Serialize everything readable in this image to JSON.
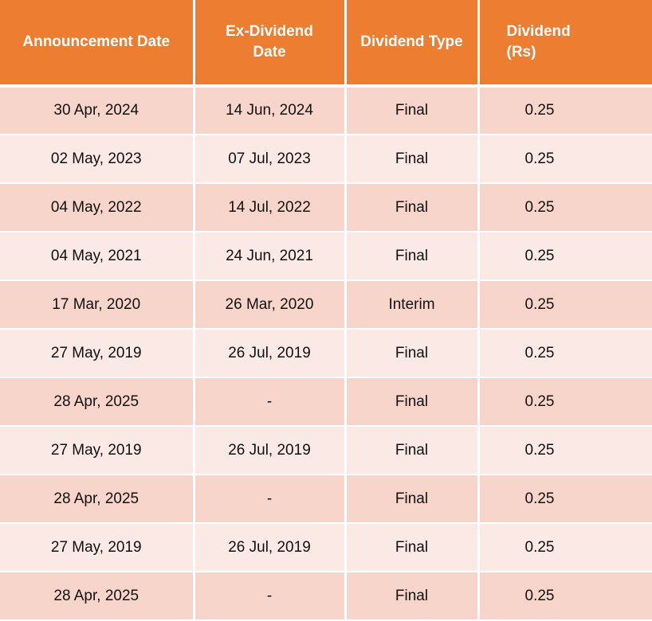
{
  "table": {
    "headers": [
      "Announcement Date",
      "Ex-Dividend Date",
      "Dividend Type",
      "Dividend (Rs)"
    ],
    "rows": [
      [
        "30 Apr, 2024",
        "14 Jun, 2024",
        "Final",
        "0.25"
      ],
      [
        "02 May, 2023",
        "07 Jul, 2023",
        "Final",
        "0.25"
      ],
      [
        "04 May, 2022",
        "14 Jul, 2022",
        "Final",
        "0.25"
      ],
      [
        "04 May, 2021",
        "24 Jun, 2021",
        "Final",
        "0.25"
      ],
      [
        "17 Mar, 2020",
        "26 Mar, 2020",
        "Interim",
        "0.25"
      ],
      [
        "27 May, 2019",
        "26 Jul, 2019",
        "Final",
        "0.25"
      ],
      [
        "28 Apr, 2025",
        "-",
        "Final",
        "0.25"
      ],
      [
        "27 May, 2019",
        "26 Jul, 2019",
        "Final",
        "0.25"
      ],
      [
        "28 Apr, 2025",
        "-",
        "Final",
        "0.25"
      ],
      [
        "27 May, 2019",
        "26 Jul, 2019",
        "Final",
        "0.25"
      ],
      [
        "28 Apr, 2025",
        "-",
        "Final",
        "0.25"
      ]
    ]
  },
  "colors": {
    "header_bg": "#ed7d31",
    "header_text": "#ffffff",
    "row_odd_bg": "#f8d5cb",
    "row_even_bg": "#fbe9e6"
  }
}
